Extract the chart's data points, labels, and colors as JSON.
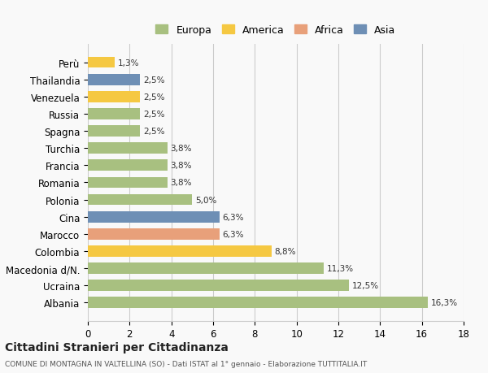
{
  "categories": [
    "Albania",
    "Ucraina",
    "Macedonia d/N.",
    "Colombia",
    "Marocco",
    "Cina",
    "Polonia",
    "Romania",
    "Francia",
    "Turchia",
    "Spagna",
    "Russia",
    "Venezuela",
    "Thailandia",
    "Perù"
  ],
  "values": [
    16.3,
    12.5,
    11.3,
    8.8,
    6.3,
    6.3,
    5.0,
    3.8,
    3.8,
    3.8,
    2.5,
    2.5,
    2.5,
    2.5,
    1.3
  ],
  "labels": [
    "16,3%",
    "12,5%",
    "11,3%",
    "8,8%",
    "6,3%",
    "6,3%",
    "5,0%",
    "3,8%",
    "3,8%",
    "3,8%",
    "2,5%",
    "2,5%",
    "2,5%",
    "2,5%",
    "1,3%"
  ],
  "colors": [
    "#a8c080",
    "#a8c080",
    "#a8c080",
    "#f5c842",
    "#e8a07a",
    "#6e8fb5",
    "#a8c080",
    "#a8c080",
    "#a8c080",
    "#a8c080",
    "#a8c080",
    "#a8c080",
    "#f5c842",
    "#6e8fb5",
    "#f5c842"
  ],
  "continent": [
    "Europa",
    "Europa",
    "Europa",
    "America",
    "Africa",
    "Asia",
    "Europa",
    "Europa",
    "Europa",
    "Europa",
    "Europa",
    "Europa",
    "America",
    "Asia",
    "America"
  ],
  "legend_labels": [
    "Europa",
    "America",
    "Africa",
    "Asia"
  ],
  "legend_colors": [
    "#a8c080",
    "#f5c842",
    "#e8a07a",
    "#6e8fb5"
  ],
  "xlim": [
    0,
    18
  ],
  "xticks": [
    0,
    2,
    4,
    6,
    8,
    10,
    12,
    14,
    16,
    18
  ],
  "title": "Cittadini Stranieri per Cittadinanza",
  "subtitle": "COMUNE DI MONTAGNA IN VALTELLINA (SO) - Dati ISTAT al 1° gennaio - Elaborazione TUTTITALIA.IT",
  "bg_color": "#f9f9f9",
  "grid_color": "#cccccc",
  "bar_height": 0.65
}
